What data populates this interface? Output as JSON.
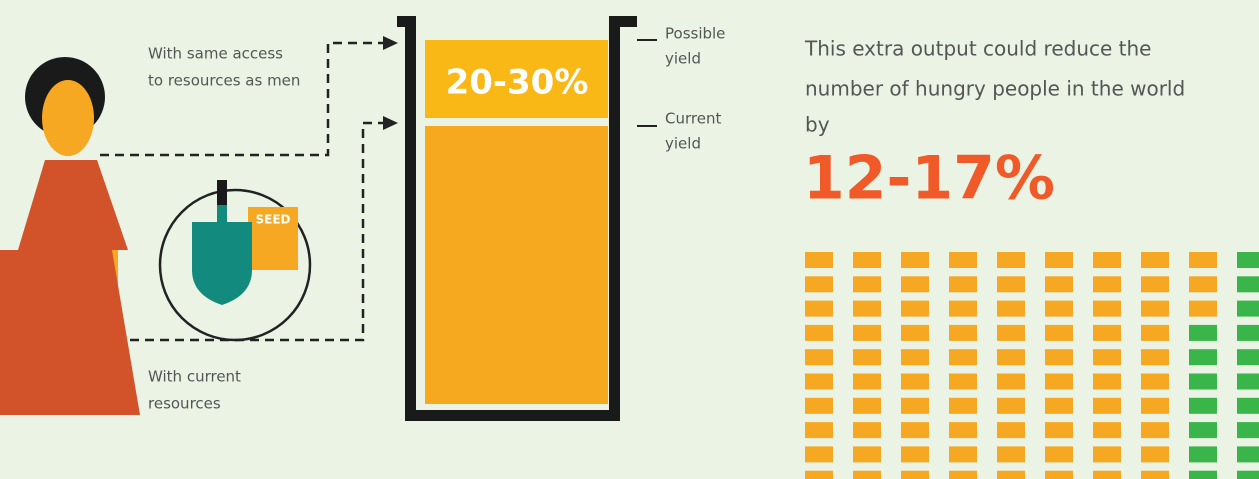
{
  "left_labels": {
    "same_access": [
      "With same access",
      "to resources as men"
    ],
    "current": [
      "With current",
      "resources"
    ],
    "seed": "SEED"
  },
  "yield_bar": {
    "gain": "20-30%",
    "possible": [
      "Possible",
      "yield"
    ],
    "current": [
      "Current",
      "yield"
    ]
  },
  "impact": {
    "text": [
      "This extra output could reduce the",
      "number of hungry people in the world",
      "by"
    ],
    "reduction": "12-17%"
  }
}
